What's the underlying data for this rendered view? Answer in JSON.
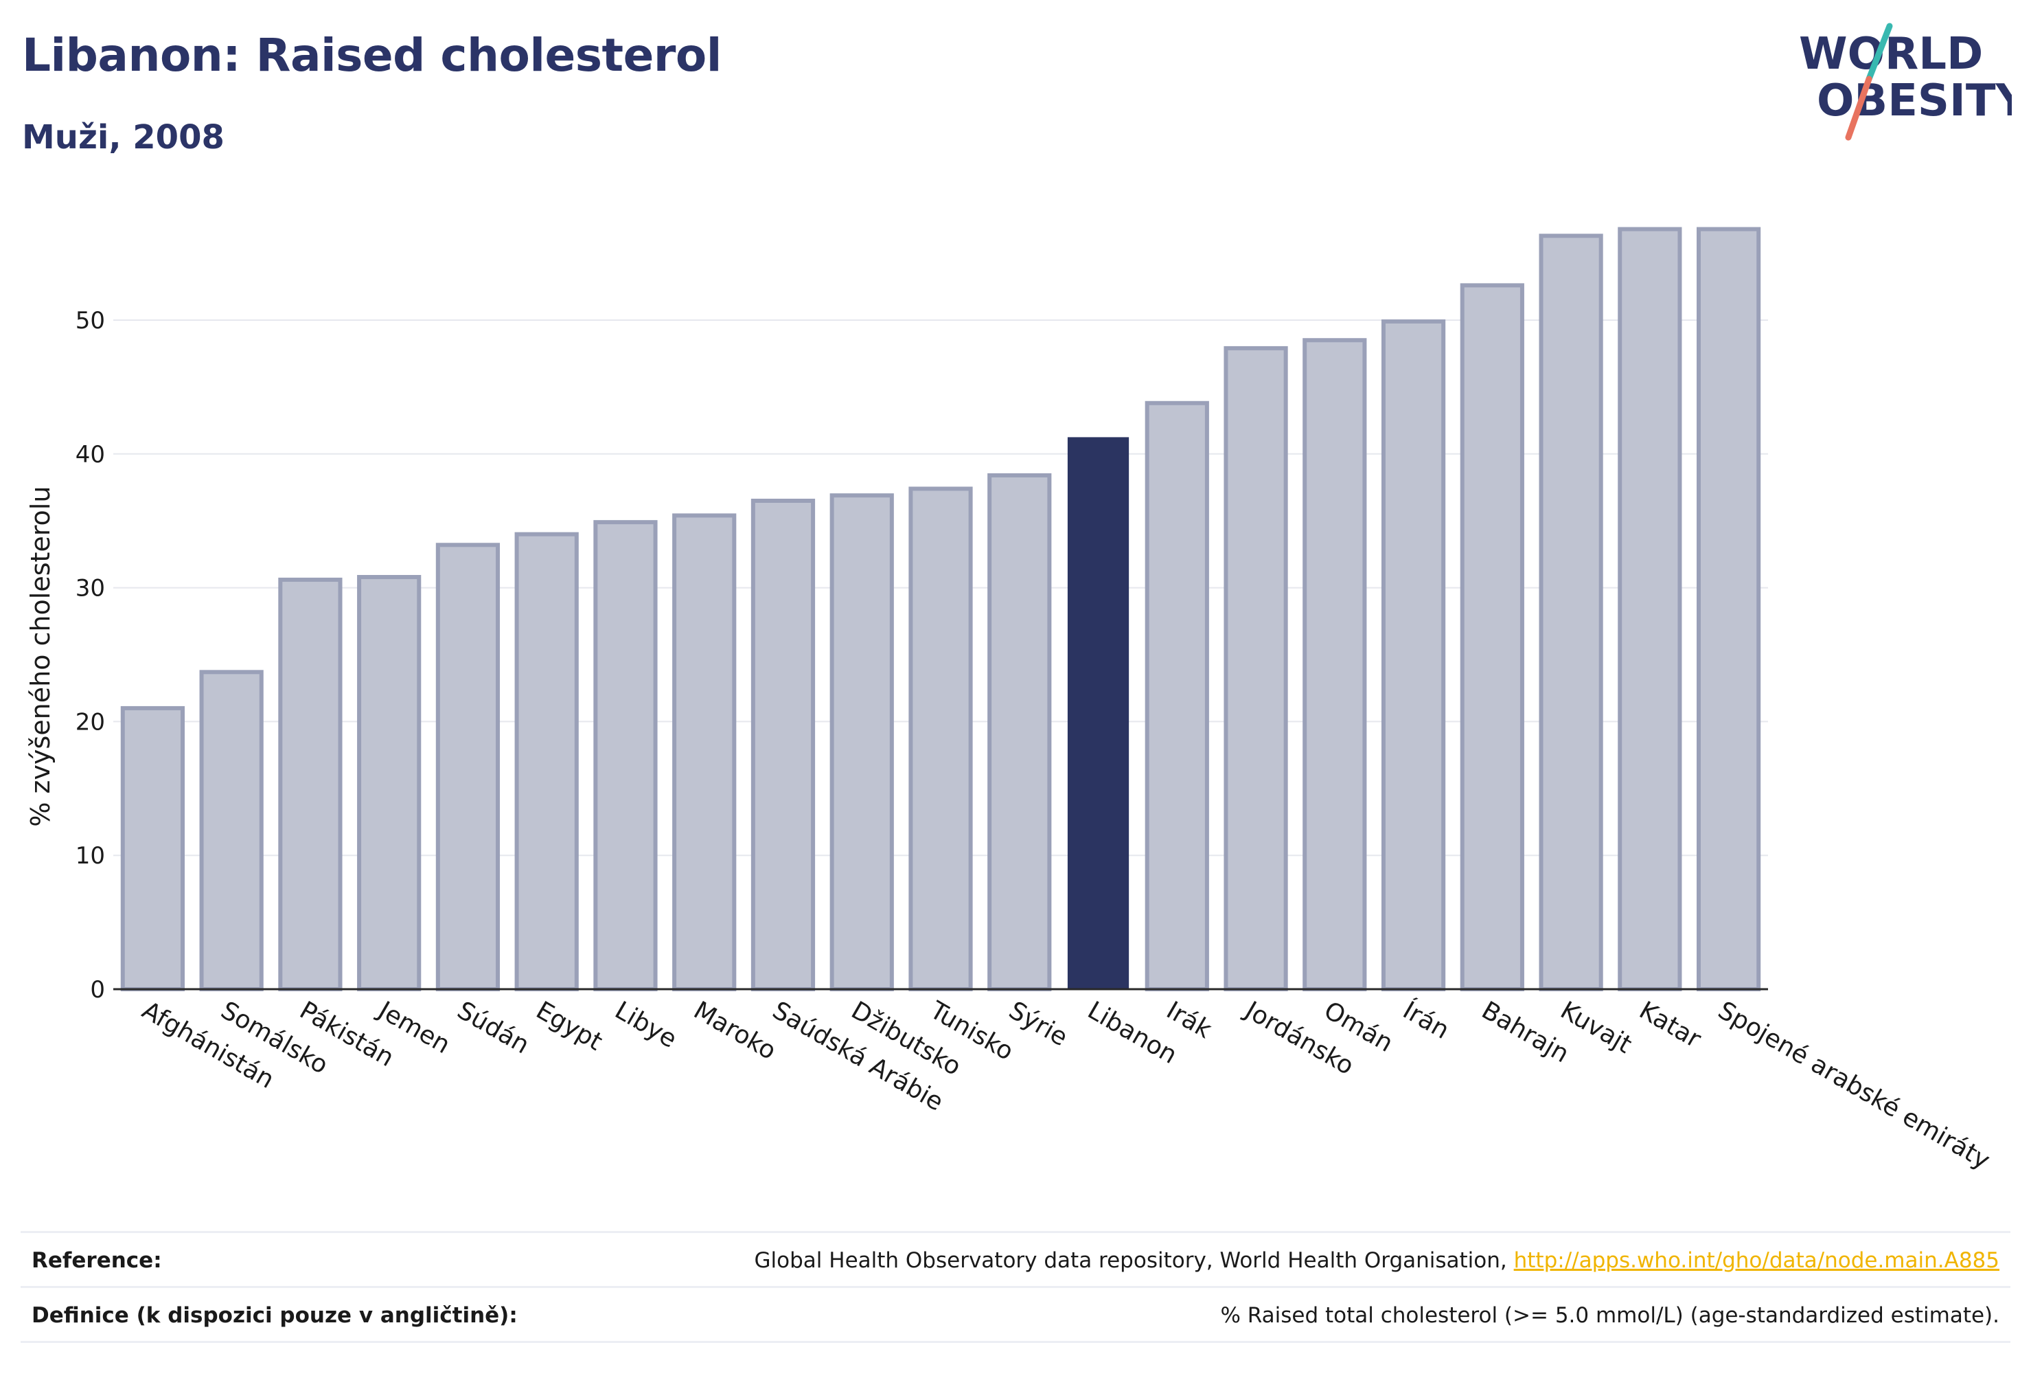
{
  "header": {
    "title": "Libanon: Raised cholesterol",
    "subtitle": "Muži, 2008"
  },
  "logo": {
    "line1": "WORLD",
    "line2": "OBESITY"
  },
  "footer": {
    "reference_label": "Reference:",
    "reference_text": "Global Health Observatory data repository, World Health Organisation, ",
    "reference_link": "http://apps.who.int/gho/data/node.main.A885",
    "definition_label": "Definice (k dispozici pouze v angličtině):",
    "definition_text": "% Raised total cholesterol (>= 5.0 mmol/L) (age-standardized estimate)."
  },
  "colors": {
    "bar": "#bfc3d1",
    "bar_border": "#9aa0b8",
    "highlight": "#2b3461",
    "title": "#2b3467",
    "logo_teal": "#38b8b0",
    "logo_coral": "#e8735f",
    "link": "#f0b400"
  },
  "chart_data": {
    "type": "bar",
    "title": "Libanon: Raised cholesterol",
    "subtitle": "Muži, 2008",
    "xlabel": "",
    "ylabel": "% zvýšeného cholesterolu",
    "ylim": [
      0,
      60
    ],
    "yticks": [
      0,
      10,
      20,
      30,
      40,
      50
    ],
    "grid": true,
    "highlight": "Libanon",
    "categories": [
      "Afghánistán",
      "Somálsko",
      "Pákistán",
      "Jemen",
      "Súdán",
      "Egypt",
      "Libye",
      "Maroko",
      "Saúdská Arábie",
      "Džibutsko",
      "Tunisko",
      "Sýrie",
      "Libanon",
      "Irák",
      "Jordánsko",
      "Omán",
      "Írán",
      "Bahrajn",
      "Kuvajt",
      "Katar",
      "Spojené arabské emiráty"
    ],
    "values": [
      21.0,
      23.7,
      30.6,
      30.8,
      33.2,
      34.0,
      34.9,
      35.4,
      36.5,
      36.9,
      37.4,
      38.4,
      41.2,
      43.8,
      47.9,
      48.5,
      49.9,
      52.6,
      56.3,
      56.8,
      56.8
    ]
  }
}
